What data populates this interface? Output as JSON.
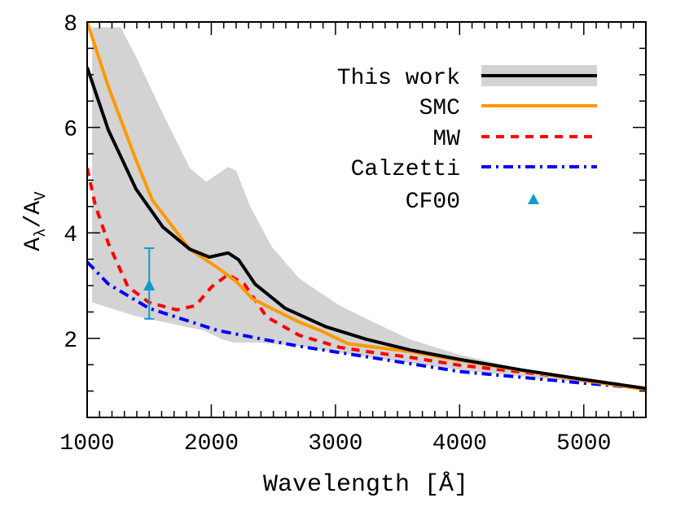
{
  "chart_data": {
    "type": "line",
    "title": "",
    "xlabel": "Wavelength [Å]",
    "ylabel": {
      "main": "A",
      "sub1": "λ",
      "slash": "/A",
      "sub2": "V"
    },
    "xlim": [
      1000,
      5500
    ],
    "ylim": [
      0.5,
      8
    ],
    "xticks": [
      1000,
      2000,
      3000,
      4000,
      5000
    ],
    "yticks": [
      2,
      4,
      6,
      8
    ],
    "x_minor_step": 100,
    "y_minor_step": 0.5,
    "grid": false,
    "legend_position": "top-right",
    "band": {
      "name": "This work",
      "color": "#d3d3d3",
      "upper": [
        [
          1040,
          7.9
        ],
        [
          1269,
          7.9
        ],
        [
          1394,
          7.34
        ],
        [
          1610,
          6.26
        ],
        [
          1827,
          5.23
        ],
        [
          1958,
          4.97
        ],
        [
          2135,
          5.25
        ],
        [
          2200,
          5.18
        ],
        [
          2310,
          4.52
        ],
        [
          2483,
          3.75
        ],
        [
          2706,
          3.14
        ],
        [
          3034,
          2.62
        ],
        [
          3251,
          2.37
        ],
        [
          3600,
          1.98
        ],
        [
          4000,
          1.69
        ],
        [
          4500,
          1.42
        ],
        [
          5000,
          1.23
        ],
        [
          5500,
          1.05
        ]
      ],
      "lower": [
        [
          1040,
          2.68
        ],
        [
          1394,
          2.42
        ],
        [
          1938,
          2.15
        ],
        [
          2089,
          1.98
        ],
        [
          2181,
          1.92
        ],
        [
          2378,
          1.92
        ],
        [
          2706,
          1.85
        ],
        [
          3251,
          1.65
        ],
        [
          4000,
          1.4
        ],
        [
          4500,
          1.28
        ],
        [
          5000,
          1.16
        ],
        [
          5500,
          1.04
        ]
      ]
    },
    "series": [
      {
        "name": "This work",
        "color": "#000000",
        "style": "solid",
        "points": [
          [
            1000,
            7.14
          ],
          [
            1171,
            5.95
          ],
          [
            1394,
            4.83
          ],
          [
            1610,
            4.11
          ],
          [
            1827,
            3.69
          ],
          [
            1984,
            3.54
          ],
          [
            2135,
            3.62
          ],
          [
            2220,
            3.49
          ],
          [
            2352,
            3.03
          ],
          [
            2594,
            2.57
          ],
          [
            2923,
            2.22
          ],
          [
            3251,
            1.98
          ],
          [
            3600,
            1.78
          ],
          [
            4000,
            1.6
          ],
          [
            4500,
            1.4
          ],
          [
            5000,
            1.22
          ],
          [
            5500,
            1.05
          ]
        ]
      },
      {
        "name": "SMC",
        "color": "#ff9900",
        "style": "solid",
        "points": [
          [
            1000,
            8.0
          ],
          [
            1171,
            6.77
          ],
          [
            1394,
            5.38
          ],
          [
            1525,
            4.62
          ],
          [
            1591,
            4.42
          ],
          [
            1742,
            3.95
          ],
          [
            1827,
            3.69
          ],
          [
            2050,
            3.34
          ],
          [
            2200,
            3.08
          ],
          [
            2332,
            2.75
          ],
          [
            2483,
            2.57
          ],
          [
            2706,
            2.31
          ],
          [
            2877,
            2.15
          ],
          [
            3100,
            1.9
          ],
          [
            3251,
            1.85
          ],
          [
            3600,
            1.75
          ],
          [
            4000,
            1.58
          ],
          [
            4500,
            1.39
          ],
          [
            5000,
            1.2
          ],
          [
            5500,
            1.03
          ]
        ]
      },
      {
        "name": "MW",
        "color": "#ff0000",
        "style": "dashed",
        "points": [
          [
            1000,
            5.23
          ],
          [
            1066,
            4.52
          ],
          [
            1171,
            3.8
          ],
          [
            1328,
            2.98
          ],
          [
            1499,
            2.68
          ],
          [
            1722,
            2.54
          ],
          [
            1873,
            2.62
          ],
          [
            2004,
            2.98
          ],
          [
            2135,
            3.21
          ],
          [
            2266,
            3.03
          ],
          [
            2444,
            2.41
          ],
          [
            2706,
            2.06
          ],
          [
            3034,
            1.83
          ],
          [
            3251,
            1.75
          ],
          [
            3600,
            1.64
          ],
          [
            4000,
            1.49
          ],
          [
            4500,
            1.36
          ],
          [
            5000,
            1.22
          ],
          [
            5500,
            1.05
          ]
        ]
      },
      {
        "name": "Calzetti",
        "color": "#0000ff",
        "style": "dashdot",
        "points": [
          [
            1000,
            3.45
          ],
          [
            1171,
            3.03
          ],
          [
            1499,
            2.57
          ],
          [
            2050,
            2.15
          ],
          [
            2706,
            1.85
          ],
          [
            3251,
            1.65
          ],
          [
            3600,
            1.52
          ],
          [
            4000,
            1.37
          ],
          [
            4500,
            1.26
          ],
          [
            5000,
            1.15
          ],
          [
            5500,
            1.05
          ]
        ]
      }
    ],
    "points": [
      {
        "name": "CF00",
        "color": "#1199cc",
        "marker": "triangle",
        "x": 1500,
        "y": 3.0,
        "yerr_low": 2.37,
        "yerr_high": 3.71
      }
    ],
    "legend": [
      "This work",
      "SMC",
      "MW",
      "Calzetti",
      "CF00"
    ]
  }
}
